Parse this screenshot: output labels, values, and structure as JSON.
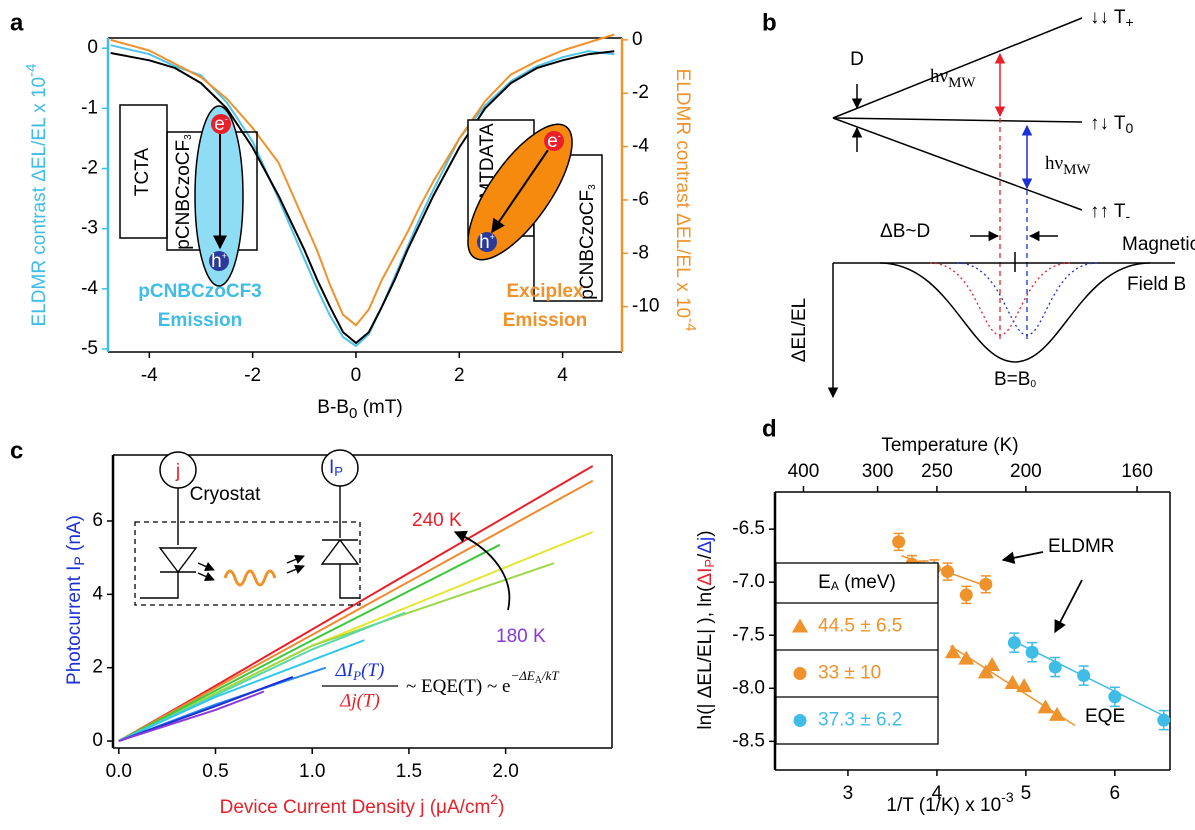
{
  "chart_data": [
    {
      "type": "line",
      "label": "a",
      "x": [
        -4.75,
        -4,
        -3.5,
        -3,
        -2.5,
        -2,
        -1.5,
        -1.25,
        -1,
        -0.75,
        -0.5,
        -0.25,
        0,
        0.25,
        0.5,
        0.75,
        1,
        1.25,
        1.5,
        2,
        2.5,
        3,
        3.5,
        4,
        4.5,
        5
      ],
      "xlim": [
        -4.8,
        5.15
      ],
      "xticks": [
        -4,
        -2,
        0,
        2,
        4
      ],
      "ylim": [
        -5.05,
        0.17
      ],
      "yticks": [
        0,
        -1,
        -2,
        -3,
        -4,
        -5
      ],
      "y2lim": [
        -11.7,
        0.07
      ],
      "y2ticks": [
        0,
        -2,
        -4,
        -6,
        -8,
        -10
      ],
      "xlabel": [
        "B-B",
        "0",
        " (mT)"
      ],
      "ylabel": [
        "ELDMR contrast ΔEL/EL x 10",
        "-4"
      ],
      "y2label": [
        "ELDMR contrast ΔEL/EL x 10",
        "-4"
      ],
      "left_axis_color": "#3fbde6",
      "right_axis_color": "#f0922b",
      "series": [
        {
          "color": "#4fc3e8",
          "values": [
            0.05,
            -0.1,
            -0.3,
            -0.45,
            -0.9,
            -1.55,
            -2.5,
            -3.0,
            -3.5,
            -4.0,
            -4.45,
            -4.8,
            -4.95,
            -4.75,
            -4.3,
            -3.8,
            -3.3,
            -2.8,
            -2.35,
            -1.5,
            -0.95,
            -0.55,
            -0.3,
            -0.15,
            -0.05,
            -0.1
          ]
        },
        {
          "color": "#f0922b",
          "axis": "y2",
          "values": [
            0.0,
            -0.4,
            -0.9,
            -1.4,
            -2.2,
            -3.3,
            -4.6,
            -5.7,
            -6.8,
            -7.9,
            -9.2,
            -10.3,
            -10.7,
            -10.1,
            -9.0,
            -8.1,
            -7.2,
            -6.2,
            -5.3,
            -3.7,
            -2.3,
            -1.3,
            -0.8,
            -0.4,
            -0.1,
            0.2
          ]
        },
        {
          "color": "#000000",
          "values": [
            -0.08,
            -0.2,
            -0.33,
            -0.58,
            -1.0,
            -1.65,
            -2.45,
            -2.9,
            -3.35,
            -3.85,
            -4.3,
            -4.72,
            -4.9,
            -4.72,
            -4.3,
            -3.85,
            -3.35,
            -2.9,
            -2.45,
            -1.65,
            -1.0,
            -0.58,
            -0.33,
            -0.2,
            -0.1,
            -0.05
          ]
        }
      ],
      "annotations": {
        "left_emitter": [
          "pCNBCzoCF3",
          "Emission"
        ],
        "right_emitter": [
          "Exciplex",
          "Emission"
        ],
        "tcta": "TCTA",
        "host_left": [
          "pCNBCzoCF",
          "3"
        ],
        "mtdata": "m-MTDATA",
        "host_right": [
          "pCNBCzoCF",
          "3"
        ],
        "electron_left": [
          "e",
          "-"
        ],
        "hole_left": [
          "h",
          "+"
        ],
        "electron_right": [
          "e",
          "-"
        ],
        "hole_right": [
          "h",
          "+"
        ]
      }
    },
    {
      "type": "line",
      "label": "c",
      "xlim": [
        -0.03,
        2.55
      ],
      "xticks": [
        {
          "value": 0,
          "label": "0.0"
        },
        0.5,
        {
          "value": 1,
          "label": "1.0"
        },
        1.5,
        {
          "value": 2,
          "label": "2.0"
        }
      ],
      "ylim": [
        -0.19,
        7.8
      ],
      "yticks": [
        0,
        2,
        4,
        6
      ],
      "xlabel": [
        "Device Current Density j (μA/cm",
        "2",
        ")"
      ],
      "ylabel": [
        "Photocurrent I",
        "P",
        " (nA)"
      ],
      "xlabel_color": "#e8202a",
      "ylabel_color": "#1c2fd8",
      "series": [
        {
          "color": "#e8202a",
          "x": [
            0,
            0.4,
            2.45
          ],
          "values": [
            0,
            1.2,
            7.5
          ]
        },
        {
          "color": "#f08a30",
          "x": [
            0,
            0.5,
            2.45
          ],
          "values": [
            0,
            1.45,
            7.1
          ]
        },
        {
          "color": "#e6e630",
          "x": [
            0,
            1.0,
            2.45
          ],
          "values": [
            0,
            2.6,
            5.7
          ]
        },
        {
          "color": "#9ed84a",
          "x": [
            0,
            1.0,
            2.25
          ],
          "values": [
            0,
            2.6,
            4.85
          ]
        },
        {
          "color": "#3cc83c",
          "x": [
            0,
            1.0,
            1.97
          ],
          "values": [
            0,
            2.75,
            5.35
          ]
        },
        {
          "color": "#5ad8a8",
          "x": [
            0,
            1.0,
            1.48
          ],
          "values": [
            0,
            2.5,
            3.5
          ]
        },
        {
          "color": "#30c8e8",
          "x": [
            0,
            0.5,
            1.27
          ],
          "values": [
            0,
            1.2,
            2.75
          ]
        },
        {
          "color": "#2a8ee8",
          "x": [
            0,
            0.5,
            1.07
          ],
          "values": [
            0,
            1.0,
            2.0
          ]
        },
        {
          "color": "#1c2fd8",
          "x": [
            0,
            0.5,
            0.9
          ],
          "values": [
            0,
            0.95,
            1.75
          ]
        },
        {
          "color": "#8a3ad8",
          "x": [
            0,
            0.5,
            0.75
          ],
          "values": [
            0,
            0.85,
            1.35
          ]
        }
      ],
      "annotations": {
        "hot": "240 K",
        "cold": "180 K",
        "cryostat": "Cryostat",
        "source": "j",
        "detector": [
          "I",
          "P"
        ]
      },
      "formula": {
        "num": [
          "ΔI",
          "P",
          "(T)"
        ],
        "den": "Δj(T)",
        "rest": "~ EQE(T) ~ e",
        "exp": [
          "−ΔE",
          "A",
          "/kT"
        ]
      }
    },
    {
      "type": "scatter",
      "label": "d",
      "xlim": [
        2.18,
        6.62
      ],
      "xticks": [
        3,
        4,
        5,
        6
      ],
      "ylim": [
        -8.77,
        -6.15
      ],
      "yticks": [
        -6.5,
        {
          "value": -7,
          "label": "-7.0"
        },
        -7.5,
        {
          "value": -8,
          "label": "-8.0"
        },
        -8.5
      ],
      "x2ticks": [
        400,
        300,
        250,
        200,
        160
      ],
      "x2scale": "reciprocal",
      "x2label": "Temperature (K)",
      "xlabel": [
        "1/T (1/K) x 10",
        "-3"
      ],
      "ylabel": [
        "ln(| ΔEL/EL| ), ln(",
        "ΔI",
        "P",
        "/",
        "Δj",
        ")"
      ],
      "legend_title": [
        "E",
        "A",
        " (meV)"
      ],
      "series": [
        {
          "name": "44.5  ± 6.5",
          "marker": "triangle",
          "color": "#f0922b",
          "x": [
            4.18,
            4.33,
            4.55,
            4.62,
            4.85,
            4.98,
            5.22,
            5.35
          ],
          "values": [
            -7.66,
            -7.72,
            -7.85,
            -7.78,
            -7.95,
            -7.98,
            -8.18,
            -8.25
          ]
        },
        {
          "name": "33  ± 10",
          "marker": "circle",
          "color": "#f0922b",
          "x": [
            3.57,
            3.72,
            3.85,
            3.97,
            4.12,
            4.33,
            4.55
          ],
          "values": [
            -6.62,
            -6.83,
            -6.88,
            -6.87,
            -6.9,
            -7.12,
            -7.02
          ],
          "errors": [
            0.08,
            0.08,
            0.08,
            0.08,
            0.08,
            0.08,
            0.08
          ]
        },
        {
          "name": "37.3  ± 6.2",
          "marker": "circle",
          "color": "#3fbde6",
          "x": [
            4.87,
            5.07,
            5.33,
            5.65,
            6.0,
            6.55
          ],
          "values": [
            -7.57,
            -7.66,
            -7.8,
            -7.88,
            -8.08,
            -8.3
          ],
          "errors": [
            0.09,
            0.09,
            0.09,
            0.09,
            0.09,
            0.09
          ]
        }
      ],
      "fits": [
        {
          "color": "#f0922b",
          "x": [
            4.15,
            5.55
          ],
          "values": [
            -7.6,
            -8.35
          ]
        },
        {
          "color": "#f0922b",
          "x": [
            3.6,
            4.6
          ],
          "values": [
            -6.75,
            -7.05
          ]
        },
        {
          "color": "#3fbde6",
          "x": [
            4.85,
            6.6
          ],
          "values": [
            -7.55,
            -8.28
          ]
        }
      ],
      "annotations": {
        "eldmr": "ELDMR",
        "eqe": "EQE"
      }
    }
  ],
  "panel_b": {
    "label": "b",
    "splitting": "D",
    "hv_upper": [
      "hν",
      "MW"
    ],
    "hv_lower": [
      "hν",
      "MW"
    ],
    "t_plus": [
      "↓↓ T",
      "+"
    ],
    "t_zero": [
      "↑↓ T",
      "0"
    ],
    "t_minus": [
      "↑↑ T",
      "-"
    ],
    "delta_b": "ΔB~D",
    "field": [
      "Magnetic",
      "Field B"
    ],
    "ylabel": "ΔEL/EL",
    "center": [
      "B=B",
      "0"
    ]
  }
}
